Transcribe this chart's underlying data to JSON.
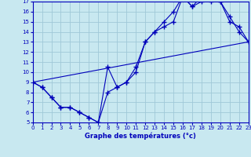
{
  "title": "Graphe des températures (°c)",
  "bg_color": "#c8e8f0",
  "grid_color": "#a0c8d8",
  "line_color": "#0000bb",
  "x_min": 0,
  "x_max": 23,
  "y_min": 5,
  "y_max": 17,
  "series1_x": [
    0,
    1,
    2,
    3,
    4,
    5,
    6,
    7,
    8,
    9,
    10,
    11,
    12,
    13,
    14,
    15,
    16,
    17,
    18,
    19,
    20,
    21,
    22,
    23
  ],
  "series1_y": [
    9,
    8.5,
    7.5,
    6.5,
    6.5,
    6,
    5.5,
    5,
    8,
    8.5,
    9,
    10,
    13,
    14,
    14.5,
    15,
    17.5,
    16.5,
    17,
    17,
    17,
    15.5,
    14,
    13
  ],
  "series2_x": [
    0,
    1,
    2,
    3,
    4,
    5,
    6,
    7,
    8,
    9,
    10,
    11,
    12,
    13,
    14,
    15,
    16,
    17,
    18,
    19,
    20,
    21,
    22,
    23
  ],
  "series2_y": [
    9,
    8.5,
    7.5,
    6.5,
    6.5,
    6,
    5.5,
    5,
    10.5,
    8.5,
    9,
    10.5,
    13,
    14,
    15,
    16,
    17.5,
    16.5,
    17.5,
    17.5,
    17,
    15,
    14.5,
    13
  ],
  "series3_x": [
    0,
    23
  ],
  "series3_y": [
    9,
    13
  ]
}
